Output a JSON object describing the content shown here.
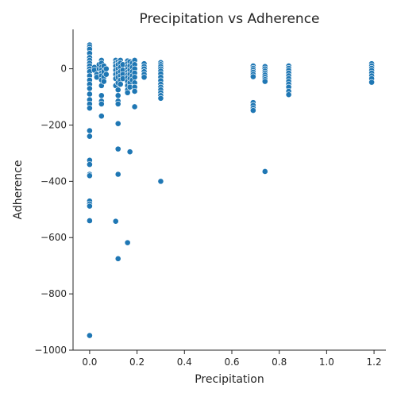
{
  "chart_data": {
    "type": "scatter",
    "title": "Precipitation vs Adherence",
    "xlabel": "Precipitation",
    "ylabel": "Adherence",
    "xlim": [
      -0.07,
      1.25
    ],
    "ylim": [
      -1000,
      140
    ],
    "xticks": [
      0.0,
      0.2,
      0.4,
      0.6,
      0.8,
      1.0,
      1.2
    ],
    "xtick_labels": [
      "0.0",
      "0.2",
      "0.4",
      "0.6",
      "0.8",
      "1.0",
      "1.2"
    ],
    "yticks": [
      0,
      -200,
      -400,
      -600,
      -800,
      -1000
    ],
    "ytick_labels": [
      "0",
      "−200",
      "−400",
      "−600",
      "−800",
      "−1000"
    ],
    "grid": false,
    "marker_color": "#1f77b4",
    "series": [
      {
        "name": "",
        "points": [
          [
            0,
            85
          ],
          [
            0,
            78
          ],
          [
            0,
            70
          ],
          [
            0,
            55
          ],
          [
            0,
            40
          ],
          [
            0,
            30
          ],
          [
            0,
            20
          ],
          [
            0,
            10
          ],
          [
            0,
            0
          ],
          [
            0,
            -10
          ],
          [
            0,
            -25
          ],
          [
            0,
            -40
          ],
          [
            0,
            -55
          ],
          [
            0,
            -70
          ],
          [
            0,
            -90
          ],
          [
            0,
            -110
          ],
          [
            0,
            -125
          ],
          [
            0,
            -140
          ],
          [
            0,
            -220
          ],
          [
            0,
            -240
          ],
          [
            0,
            -325
          ],
          [
            0,
            -340
          ],
          [
            0,
            -375
          ],
          [
            0,
            -380
          ],
          [
            0,
            -470
          ],
          [
            0,
            -480
          ],
          [
            0,
            -488
          ],
          [
            0,
            -540
          ],
          [
            0,
            -948
          ],
          [
            0.02,
            5
          ],
          [
            0.02,
            -5
          ],
          [
            0.03,
            -20
          ],
          [
            0.03,
            -30
          ],
          [
            0.04,
            0
          ],
          [
            0.04,
            15
          ],
          [
            0.05,
            30
          ],
          [
            0.05,
            20
          ],
          [
            0.05,
            5
          ],
          [
            0.05,
            -5
          ],
          [
            0.05,
            -15
          ],
          [
            0.05,
            -25
          ],
          [
            0.05,
            -40
          ],
          [
            0.05,
            -60
          ],
          [
            0.05,
            -95
          ],
          [
            0.05,
            -115
          ],
          [
            0.05,
            -125
          ],
          [
            0.05,
            -168
          ],
          [
            0.06,
            10
          ],
          [
            0.06,
            -10
          ],
          [
            0.06,
            -30
          ],
          [
            0.06,
            -45
          ],
          [
            0.07,
            0
          ],
          [
            0.07,
            -20
          ],
          [
            0.11,
            30
          ],
          [
            0.11,
            20
          ],
          [
            0.11,
            10
          ],
          [
            0.11,
            -5
          ],
          [
            0.11,
            -20
          ],
          [
            0.11,
            -35
          ],
          [
            0.11,
            -60
          ],
          [
            0.11,
            -542
          ],
          [
            0.12,
            25
          ],
          [
            0.12,
            15
          ],
          [
            0.12,
            0
          ],
          [
            0.12,
            -15
          ],
          [
            0.12,
            -30
          ],
          [
            0.12,
            -50
          ],
          [
            0.12,
            -75
          ],
          [
            0.12,
            -95
          ],
          [
            0.12,
            -115
          ],
          [
            0.12,
            -125
          ],
          [
            0.12,
            -195
          ],
          [
            0.12,
            -285
          ],
          [
            0.12,
            -375
          ],
          [
            0.12,
            -675
          ],
          [
            0.13,
            30
          ],
          [
            0.13,
            20
          ],
          [
            0.13,
            5
          ],
          [
            0.13,
            -10
          ],
          [
            0.13,
            -25
          ],
          [
            0.13,
            -40
          ],
          [
            0.13,
            -55
          ],
          [
            0.14,
            15
          ],
          [
            0.14,
            -5
          ],
          [
            0.14,
            -20
          ],
          [
            0.14,
            -35
          ],
          [
            0.16,
            28
          ],
          [
            0.16,
            18
          ],
          [
            0.16,
            8
          ],
          [
            0.16,
            -2
          ],
          [
            0.16,
            -12
          ],
          [
            0.16,
            -22
          ],
          [
            0.16,
            -32
          ],
          [
            0.16,
            -45
          ],
          [
            0.16,
            -60
          ],
          [
            0.16,
            -75
          ],
          [
            0.16,
            -85
          ],
          [
            0.16,
            -618
          ],
          [
            0.17,
            25
          ],
          [
            0.17,
            10
          ],
          [
            0.17,
            -5
          ],
          [
            0.17,
            -20
          ],
          [
            0.17,
            -35
          ],
          [
            0.17,
            -50
          ],
          [
            0.17,
            -65
          ],
          [
            0.17,
            -295
          ],
          [
            0.18,
            20
          ],
          [
            0.18,
            5
          ],
          [
            0.18,
            -10
          ],
          [
            0.18,
            -25
          ],
          [
            0.18,
            -40
          ],
          [
            0.19,
            30
          ],
          [
            0.19,
            15
          ],
          [
            0.19,
            0
          ],
          [
            0.19,
            -15
          ],
          [
            0.19,
            -30
          ],
          [
            0.19,
            -50
          ],
          [
            0.19,
            -65
          ],
          [
            0.19,
            -80
          ],
          [
            0.19,
            -135
          ],
          [
            0.23,
            18
          ],
          [
            0.23,
            8
          ],
          [
            0.23,
            0
          ],
          [
            0.23,
            -10
          ],
          [
            0.23,
            -20
          ],
          [
            0.23,
            -30
          ],
          [
            0.3,
            22
          ],
          [
            0.3,
            15
          ],
          [
            0.3,
            8
          ],
          [
            0.3,
            0
          ],
          [
            0.3,
            -8
          ],
          [
            0.3,
            -18
          ],
          [
            0.3,
            -30
          ],
          [
            0.3,
            -42
          ],
          [
            0.3,
            -55
          ],
          [
            0.3,
            -65
          ],
          [
            0.3,
            -75
          ],
          [
            0.3,
            -85
          ],
          [
            0.3,
            -95
          ],
          [
            0.3,
            -105
          ],
          [
            0.3,
            -400
          ],
          [
            0.69,
            10
          ],
          [
            0.69,
            2
          ],
          [
            0.69,
            -5
          ],
          [
            0.69,
            -12
          ],
          [
            0.69,
            -20
          ],
          [
            0.69,
            -28
          ],
          [
            0.69,
            -120
          ],
          [
            0.69,
            -130
          ],
          [
            0.69,
            -140
          ],
          [
            0.69,
            -148
          ],
          [
            0.74,
            8
          ],
          [
            0.74,
            0
          ],
          [
            0.74,
            -8
          ],
          [
            0.74,
            -15
          ],
          [
            0.74,
            -22
          ],
          [
            0.74,
            -30
          ],
          [
            0.74,
            -38
          ],
          [
            0.74,
            -45
          ],
          [
            0.74,
            -365
          ],
          [
            0.84,
            10
          ],
          [
            0.84,
            2
          ],
          [
            0.84,
            -6
          ],
          [
            0.84,
            -15
          ],
          [
            0.84,
            -25
          ],
          [
            0.84,
            -35
          ],
          [
            0.84,
            -45
          ],
          [
            0.84,
            -55
          ],
          [
            0.84,
            -65
          ],
          [
            0.84,
            -80
          ],
          [
            0.84,
            -92
          ],
          [
            1.19,
            18
          ],
          [
            1.19,
            10
          ],
          [
            1.19,
            2
          ],
          [
            1.19,
            -6
          ],
          [
            1.19,
            -15
          ],
          [
            1.19,
            -25
          ],
          [
            1.19,
            -35
          ],
          [
            1.19,
            -48
          ]
        ]
      }
    ]
  }
}
